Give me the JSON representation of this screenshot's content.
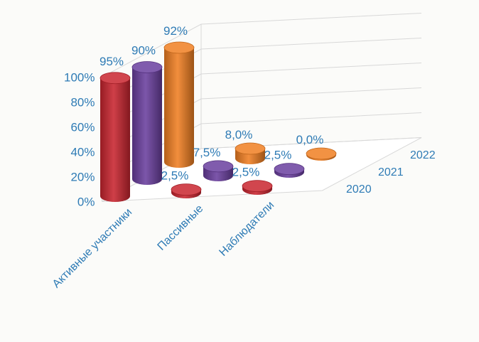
{
  "chart_data": {
    "type": "bar",
    "style": "3d-cylinder",
    "categories": [
      "Активные участники",
      "Пассивные",
      "Наблюдатели"
    ],
    "series": [
      {
        "name": "2020",
        "color": "#c9252f",
        "values": [
          95,
          2.5,
          2.5
        ],
        "labels": [
          "95%",
          "2,5%",
          "2,5%"
        ]
      },
      {
        "name": "2021",
        "color": "#6a3f9e",
        "values": [
          90,
          7.5,
          2.5
        ],
        "labels": [
          "90%",
          "7,5%",
          "2,5%"
        ]
      },
      {
        "name": "2022",
        "color": "#f07f22",
        "values": [
          92,
          8.0,
          0.0
        ],
        "labels": [
          "92%",
          "8,0%",
          "0,0%"
        ]
      }
    ],
    "y_ticks": [
      "0%",
      "20%",
      "40%",
      "60%",
      "80%",
      "100%"
    ],
    "y_tick_values": [
      0,
      20,
      40,
      60,
      80,
      100
    ],
    "ylim": [
      0,
      100
    ],
    "title": "",
    "xlabel": "",
    "ylabel": "",
    "grid": true,
    "legend": "none"
  }
}
